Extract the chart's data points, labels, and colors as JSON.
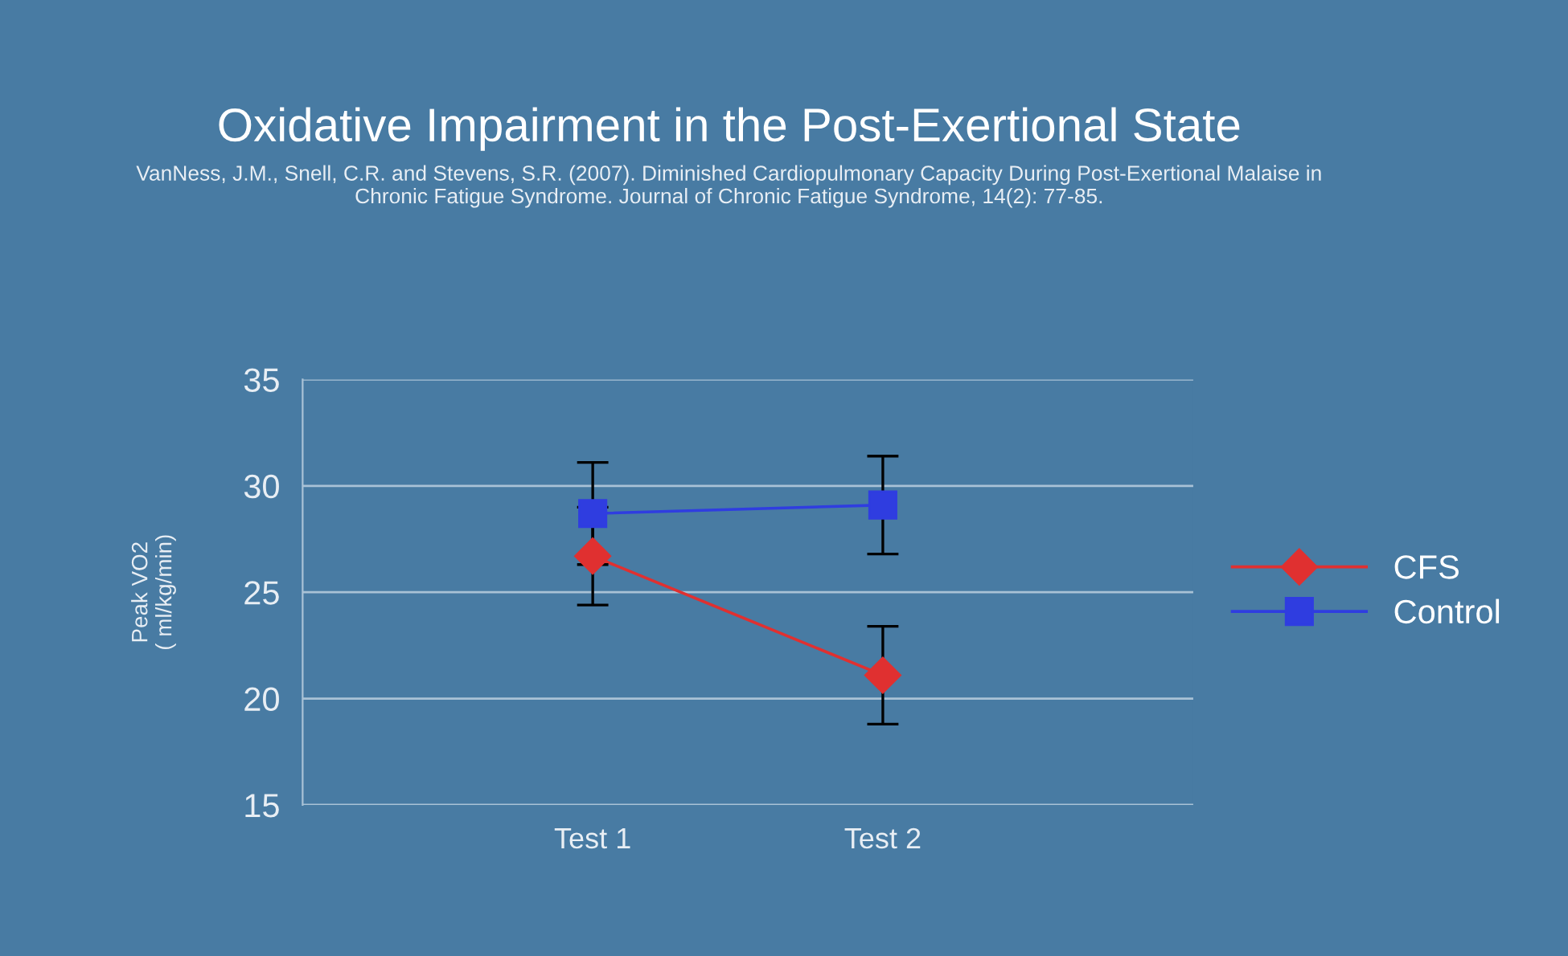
{
  "chart_data": {
    "type": "line",
    "title": "Oxidative Impairment in the Post-Exertional State",
    "subtitle": "VanNess, J.M., Snell, C.R. and Stevens, S.R. (2007). Diminished Cardiopulmonary Capacity During Post-Exertional Malaise in\nChronic Fatigue Syndrome. Journal of Chronic Fatigue Syndrome, 14(2): 77-85.",
    "ylabel": "Peak VO2\n( ml/kg/min)",
    "categories": [
      "Test 1",
      "Test 2"
    ],
    "series": [
      {
        "name": "CFS",
        "color": "#e03030",
        "marker": "diamond",
        "values": [
          26.7,
          21.1
        ],
        "errors": [
          2.3,
          2.3
        ]
      },
      {
        "name": "Control",
        "color": "#2f3de0",
        "marker": "square",
        "values": [
          28.7,
          29.1
        ],
        "errors": [
          2.4,
          2.3
        ]
      }
    ],
    "ylim": [
      15,
      35
    ],
    "yticks": [
      15,
      20,
      25,
      30,
      35
    ],
    "grid": "y",
    "legend": "right",
    "line_style": "solid"
  }
}
